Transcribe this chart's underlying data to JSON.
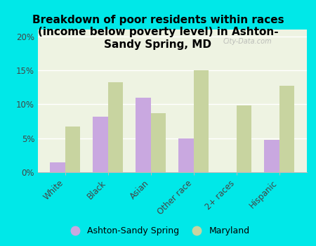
{
  "title": "Breakdown of poor residents within races\n(income below poverty level) in Ashton-\nSandy Spring, MD",
  "categories": [
    "White",
    "Black",
    "Asian",
    "Other race",
    "2+ races",
    "Hispanic"
  ],
  "ashton_values": [
    1.5,
    8.2,
    11.0,
    5.0,
    0.0,
    4.8
  ],
  "maryland_values": [
    6.7,
    13.2,
    8.7,
    15.0,
    9.8,
    12.7
  ],
  "ashton_color": "#c9a8e0",
  "maryland_color": "#c8d4a0",
  "background_outer": "#00e8e8",
  "background_inner": "#eef3e2",
  "ylim": [
    0,
    21
  ],
  "yticks": [
    0,
    5,
    10,
    15,
    20
  ],
  "ytick_labels": [
    "0%",
    "5%",
    "10%",
    "15%",
    "20%"
  ],
  "legend_ashton": "Ashton-Sandy Spring",
  "legend_maryland": "Maryland",
  "watermark": "City-Data.com",
  "bar_width": 0.35,
  "title_fontsize": 11,
  "tick_fontsize": 8.5
}
